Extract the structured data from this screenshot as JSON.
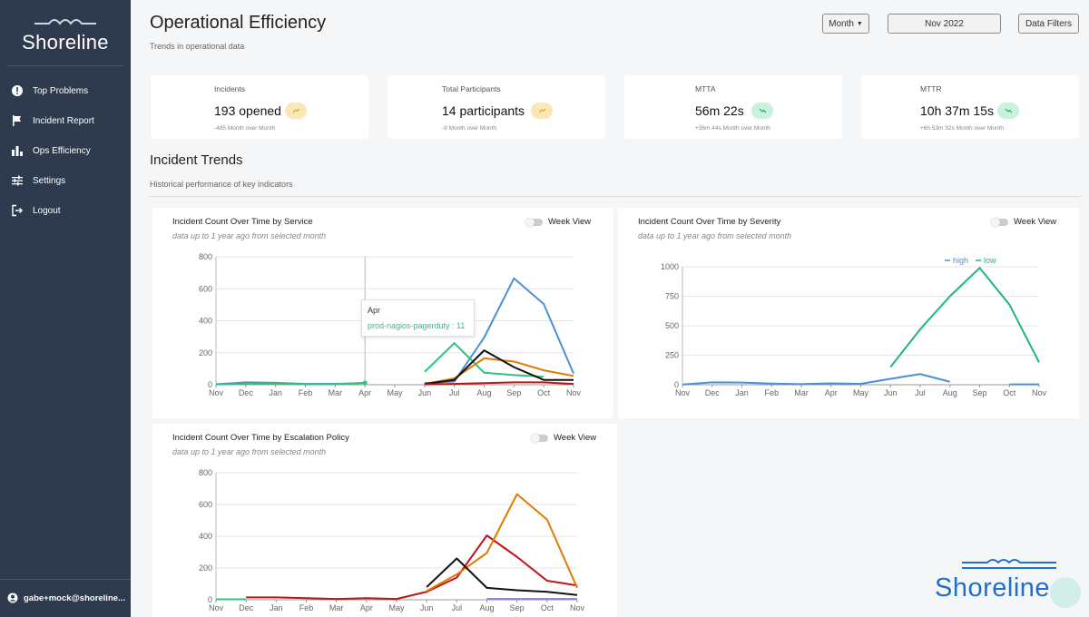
{
  "app": {
    "logo_text": "Shoreline",
    "watermark_text": "Shoreline",
    "user": "gabe+mock@shoreline...",
    "nav": [
      {
        "label": "Top Problems",
        "icon": "alert-circle-icon"
      },
      {
        "label": "Incident Report",
        "icon": "flag-icon"
      },
      {
        "label": "Ops Efficiency",
        "icon": "bar-chart-icon"
      },
      {
        "label": "Settings",
        "icon": "sliders-icon"
      },
      {
        "label": "Logout",
        "icon": "logout-icon"
      }
    ]
  },
  "header": {
    "title": "Operational Efficiency",
    "subtitle": "Trends in operational data",
    "period_select": "Month",
    "date_value": "Nov 2022",
    "filters_label": "Data Filters"
  },
  "kpis": [
    {
      "label": "Incidents",
      "value": "193 opened",
      "note": "-485 Month over Month",
      "trend": "up",
      "color": "#f7c948"
    },
    {
      "label": "Total Participants",
      "value": "14 participants",
      "note": "-9 Month over Month",
      "trend": "up",
      "color": "#f7c948"
    },
    {
      "label": "MTTA",
      "value": "56m 22s",
      "note": "+36m 44s Month over Month",
      "trend": "down",
      "color": "#2ec27e"
    },
    {
      "label": "MTTR",
      "value": "10h 37m 15s",
      "note": "+6h 53m 32s Month over Month",
      "trend": "down",
      "color": "#2ec27e"
    }
  ],
  "trends": {
    "title": "Incident Trends",
    "subtitle": "Historical performance of key indicators"
  },
  "charts": {
    "service": {
      "title": "Incident Count Over Time by Service",
      "subtitle": "data up to 1 year ago from selected month",
      "toggle": "Week View"
    },
    "severity": {
      "title": "Incident Count Over Time by Severity",
      "subtitle": "data up to 1 year ago from selected month",
      "toggle": "Week View"
    },
    "escalation": {
      "title": "Incident Count Over Time by Escalation Policy",
      "subtitle": "data up to 1 year ago from selected month",
      "toggle": "Week View"
    }
  },
  "tooltip": {
    "title": "Apr",
    "line": "prod-nagios-pagerduty : 11"
  },
  "chart_data": [
    {
      "id": "service",
      "type": "line",
      "categories": [
        "Nov",
        "Dec",
        "Jan",
        "Feb",
        "Mar",
        "Apr",
        "May",
        "Jun",
        "Jul",
        "Aug",
        "Sep",
        "Oct",
        "Nov"
      ],
      "ylim": [
        0,
        800
      ],
      "yticks": [
        0,
        200,
        400,
        600,
        800
      ],
      "series": [
        {
          "name": "blue",
          "color": "#4a90d9",
          "values": [
            3,
            15,
            12,
            5,
            5,
            11,
            null,
            10,
            20,
            295,
            665,
            505,
            70
          ]
        },
        {
          "name": "prod-nagios-pagerduty",
          "color": "#2ec27e",
          "values": [
            null,
            null,
            null,
            null,
            null,
            11,
            null,
            80,
            260,
            75,
            60,
            50,
            null
          ]
        },
        {
          "name": "teal-early",
          "color": "#2ec27e",
          "values": [
            2,
            5,
            8,
            3,
            4,
            11,
            null,
            null,
            null,
            null,
            null,
            null,
            null
          ]
        },
        {
          "name": "orange",
          "color": "#e07b00",
          "values": [
            null,
            null,
            null,
            null,
            null,
            null,
            null,
            5,
            40,
            165,
            145,
            90,
            55
          ]
        },
        {
          "name": "black",
          "color": "#111111",
          "values": [
            null,
            null,
            null,
            null,
            null,
            null,
            null,
            5,
            30,
            215,
            110,
            30,
            30
          ]
        },
        {
          "name": "red",
          "color": "#c0141a",
          "values": [
            null,
            null,
            null,
            null,
            null,
            null,
            null,
            2,
            5,
            10,
            15,
            15,
            5
          ]
        }
      ]
    },
    {
      "id": "severity",
      "type": "line",
      "categories": [
        "Nov",
        "Dec",
        "Jan",
        "Feb",
        "Mar",
        "Apr",
        "May",
        "Jun",
        "Jul",
        "Aug",
        "Sep",
        "Oct",
        "Nov"
      ],
      "ylim": [
        0,
        1000
      ],
      "yticks": [
        0,
        250,
        500,
        750,
        1000
      ],
      "legend": [
        "high",
        "low"
      ],
      "series": [
        {
          "name": "high",
          "color": "#4a90d9",
          "values": [
            2,
            20,
            18,
            10,
            5,
            12,
            8,
            50,
            90,
            25,
            null,
            3,
            3
          ]
        },
        {
          "name": "low",
          "color": "#1db385",
          "values": [
            null,
            null,
            null,
            null,
            null,
            null,
            null,
            150,
            470,
            750,
            990,
            680,
            190
          ]
        }
      ]
    },
    {
      "id": "escalation",
      "type": "line",
      "categories": [
        "Nov",
        "Dec",
        "Jan",
        "Feb",
        "Mar",
        "Apr",
        "May",
        "Jun",
        "Jul",
        "Aug",
        "Sep",
        "Oct",
        "Nov"
      ],
      "ylim": [
        0,
        800
      ],
      "yticks": [
        0,
        200,
        400,
        600,
        800
      ],
      "series": [
        {
          "name": "teal",
          "color": "#2ec27e",
          "values": [
            3,
            3,
            null,
            null,
            null,
            null,
            null,
            null,
            null,
            null,
            null,
            null,
            null
          ]
        },
        {
          "name": "red",
          "color": "#c0141a",
          "values": [
            null,
            15,
            15,
            10,
            5,
            10,
            5,
            50,
            140,
            405,
            270,
            120,
            90
          ]
        },
        {
          "name": "orange",
          "color": "#e07b00",
          "values": [
            null,
            null,
            null,
            null,
            null,
            null,
            null,
            55,
            160,
            295,
            665,
            505,
            75
          ]
        },
        {
          "name": "black",
          "color": "#111111",
          "values": [
            null,
            null,
            null,
            null,
            null,
            null,
            null,
            80,
            260,
            75,
            60,
            50,
            30
          ]
        },
        {
          "name": "purple",
          "color": "#8a7be0",
          "values": [
            null,
            null,
            null,
            null,
            null,
            null,
            null,
            null,
            null,
            5,
            5,
            5,
            5
          ]
        }
      ]
    }
  ]
}
